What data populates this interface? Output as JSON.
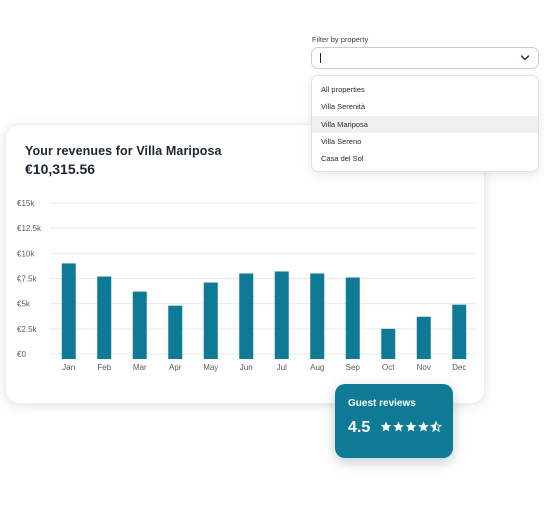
{
  "filter": {
    "label": "Filter by property",
    "value": "",
    "options": [
      "All properties",
      "Villa Serenità",
      "Villa Mariposa",
      "Villa Sereno",
      "Casa del Sol"
    ],
    "highlighted": "Villa Mariposa"
  },
  "revenue": {
    "title": "Your revenues for Villa Mariposa",
    "total": "€10,315.56"
  },
  "colors": {
    "bar": "#0f7a96",
    "accent": "#0f7a96",
    "grid": "#e6e8ec"
  },
  "chart_data": {
    "type": "bar",
    "categories": [
      "Jan",
      "Feb",
      "Mar",
      "Apr",
      "May",
      "Jun",
      "Jul",
      "Aug",
      "Sep",
      "Oct",
      "Nov",
      "Dec"
    ],
    "values": [
      9000,
      7700,
      6200,
      4800,
      7100,
      8000,
      8200,
      8000,
      7600,
      2500,
      3700,
      4900
    ],
    "ylim": [
      0,
      15000
    ],
    "yticks": [
      {
        "value": 15000,
        "label": "€15k"
      },
      {
        "value": 12500,
        "label": "€12.5k"
      },
      {
        "value": 10000,
        "label": "€10k"
      },
      {
        "value": 7500,
        "label": "€7.5k"
      },
      {
        "value": 5000,
        "label": "€5k"
      },
      {
        "value": 2500,
        "label": "€2.5k"
      },
      {
        "value": 0,
        "label": "€0"
      }
    ],
    "grid": true
  },
  "reviews": {
    "title": "Guest reviews",
    "score": "4.5",
    "rating": 4.5,
    "max": 5,
    "icon": "star-icon"
  }
}
